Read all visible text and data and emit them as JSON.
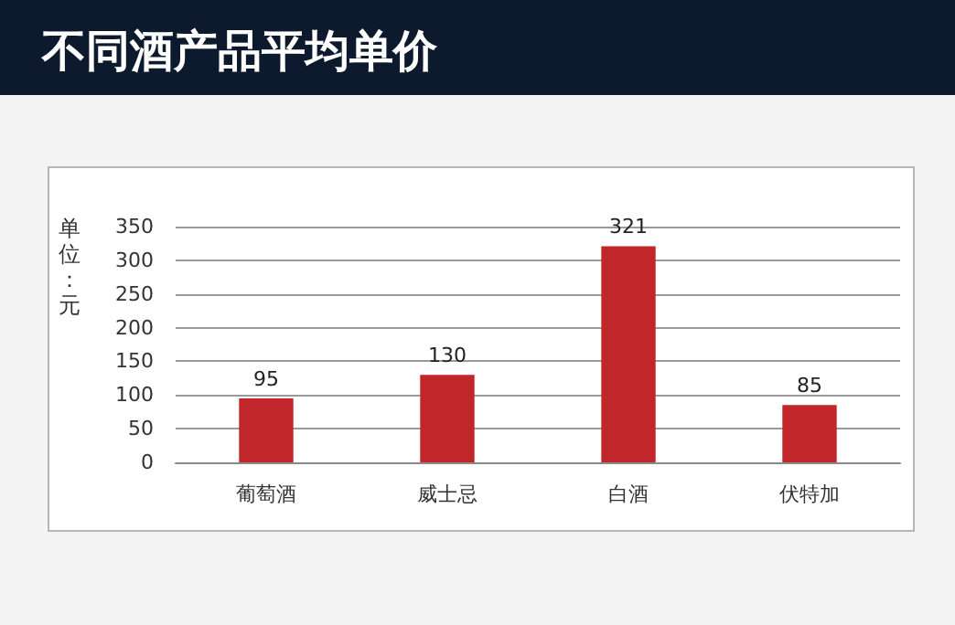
{
  "chart_data": {
    "type": "bar",
    "title": "不同酒产品平均单价",
    "ylabel": "单位：元",
    "categories": [
      "葡萄酒",
      "威士忌",
      "白酒",
      "伏特加"
    ],
    "values": [
      95,
      130,
      321,
      85
    ],
    "color": "#c0262a",
    "ylim": [
      0,
      350
    ],
    "yticks": [
      0,
      50,
      100,
      150,
      200,
      250,
      300,
      350
    ],
    "grid": "y",
    "data_labels": true
  }
}
